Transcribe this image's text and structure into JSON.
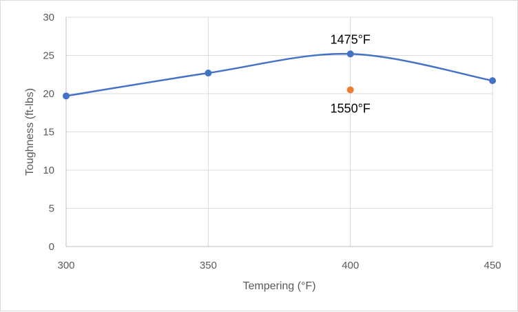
{
  "chart_data": {
    "type": "scatter",
    "xlabel": "Tempering (°F)",
    "ylabel": "Toughness (ft-lbs)",
    "xlim": [
      300,
      450
    ],
    "ylim": [
      0,
      30
    ],
    "xticks": [
      300,
      350,
      400,
      450
    ],
    "yticks": [
      0,
      5,
      10,
      15,
      20,
      25,
      30
    ],
    "grid": true,
    "legend": "none",
    "series": [
      {
        "color": "#4472c4",
        "style": "smooth-line-markers",
        "x": [
          300,
          350,
          400,
          450
        ],
        "y": [
          19.7,
          22.7,
          25.2,
          21.7
        ]
      },
      {
        "color": "#ed7d31",
        "style": "markers",
        "x": [
          400
        ],
        "y": [
          20.5
        ]
      }
    ],
    "annotations": [
      {
        "text": "1475°F",
        "x": 400,
        "y": 25.2,
        "anchor": "above"
      },
      {
        "text": "1550°F",
        "x": 400,
        "y": 20.5,
        "anchor": "below"
      }
    ]
  }
}
